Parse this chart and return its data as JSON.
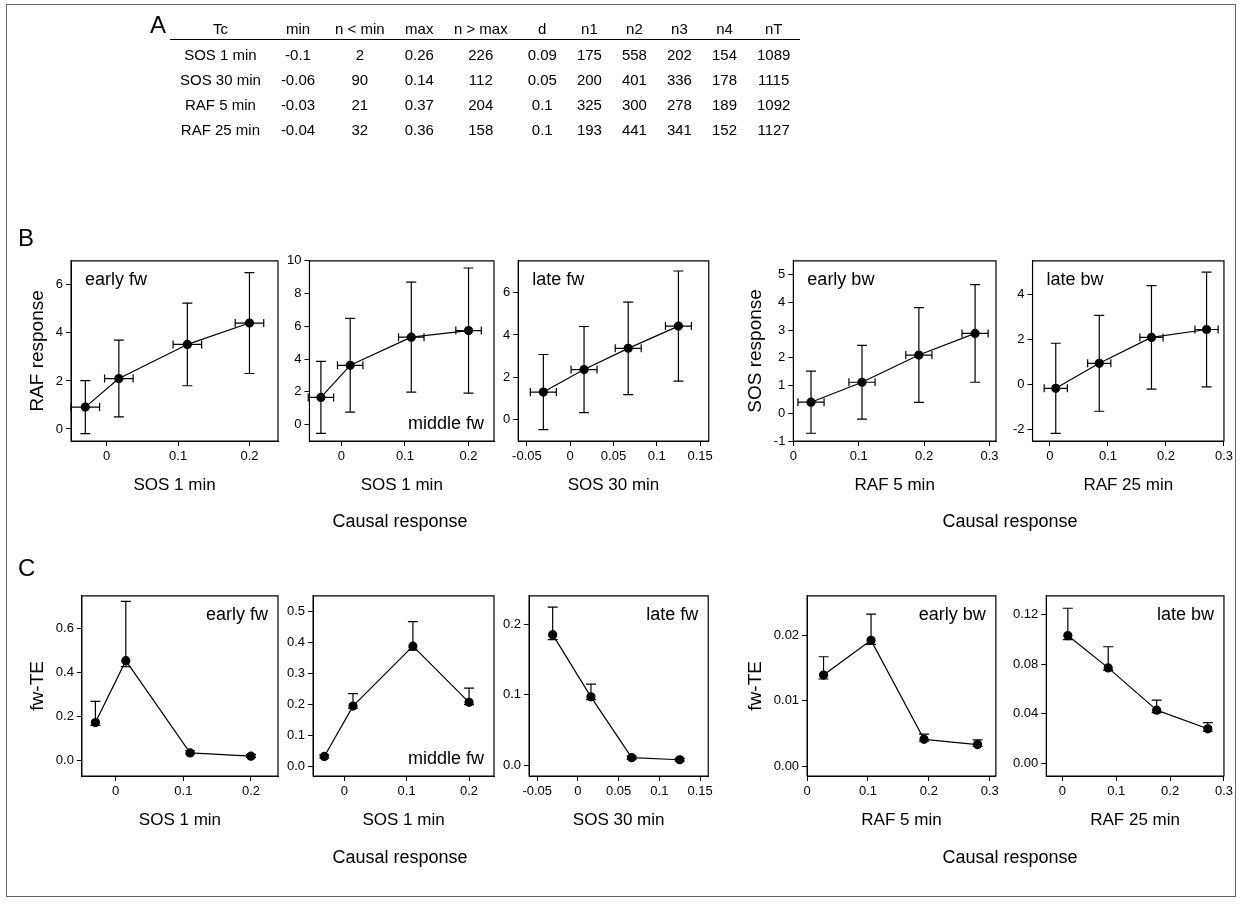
{
  "chart_data": [
    {
      "type": "other",
      "annotations": [
        "A"
      ],
      "ylabel": "Tc",
      "data_labels": true,
      "categories": [
        "min",
        "n < min",
        "max",
        "n > max",
        "d",
        "n1",
        "n2",
        "n3",
        "n4",
        "nT"
      ],
      "y_categories": [
        "SOS 1 min",
        "SOS 30 min",
        "RAF 5 min",
        "RAF 25 min"
      ],
      "cell_labels": [
        [
          "-0.1",
          "2",
          "0.26",
          "226",
          "0.09",
          "175",
          "558",
          "202",
          "154",
          "1089"
        ],
        [
          "-0.06",
          "90",
          "0.14",
          "112",
          "0.05",
          "200",
          "401",
          "336",
          "178",
          "1115"
        ],
        [
          "-0.03",
          "21",
          "0.37",
          "204",
          "0.1",
          "325",
          "300",
          "278",
          "189",
          "1092"
        ],
        [
          "-0.04",
          "32",
          "0.36",
          "158",
          "0.1",
          "193",
          "441",
          "341",
          "152",
          "1127"
        ]
      ]
    },
    {
      "type": "line",
      "title": "early fw",
      "annotations": [
        "B"
      ],
      "xlabel": "SOS 1 min",
      "ylabel": "RAF response",
      "color": "#000000",
      "marker": "circle",
      "x": [
        -0.03,
        0.017,
        0.113,
        0.2
      ],
      "values": [
        0.91,
        2.1,
        3.52,
        4.41
      ],
      "errors": [
        1.1,
        1.6,
        1.72,
        2.1
      ],
      "xerrors": [
        0.02,
        0.02,
        0.02,
        0.02
      ],
      "xlim": [
        -0.05,
        0.24
      ],
      "xticks": [
        0,
        0.1,
        0.2
      ],
      "ylim": [
        -0.5,
        7
      ],
      "yticks": [
        0,
        2,
        4,
        6
      ]
    },
    {
      "type": "line",
      "title": "middle fw",
      "annotations": [
        "Causal response"
      ],
      "xlabel": "SOS 1 min",
      "color": "#000000",
      "marker": "circle",
      "x": [
        -0.032,
        0.014,
        0.11,
        0.2
      ],
      "values": [
        1.66,
        3.62,
        5.34,
        5.74
      ],
      "errors": [
        2.2,
        2.86,
        3.36,
        3.82
      ],
      "xerrors": [
        0.02,
        0.02,
        0.02,
        0.02
      ],
      "xlim": [
        -0.05,
        0.24
      ],
      "xticks": [
        0,
        0.1,
        0.2
      ],
      "ylim": [
        -1,
        10
      ],
      "yticks": [
        0,
        2,
        4,
        6,
        8,
        10
      ]
    },
    {
      "type": "line",
      "title": "late fw",
      "xlabel": "SOS 30 min",
      "color": "#000000",
      "marker": "circle",
      "x": [
        -0.031,
        0.016,
        0.067,
        0.125
      ],
      "values": [
        1.31,
        2.37,
        3.37,
        4.42
      ],
      "errors": [
        1.77,
        2.03,
        2.18,
        2.6
      ],
      "xerrors": [
        0.015,
        0.015,
        0.015,
        0.015
      ],
      "xlim": [
        -0.06,
        0.16
      ],
      "xticks": [
        -0.05,
        0,
        0.05,
        0.1,
        0.15
      ],
      "ylim": [
        -1,
        7.5
      ],
      "yticks": [
        0,
        2,
        4,
        6
      ]
    },
    {
      "type": "line",
      "title": "early bw",
      "annotations": [
        "Causal response"
      ],
      "xlabel": "RAF 5 min",
      "ylabel": "SOS response",
      "color": "#000000",
      "marker": "circle",
      "x": [
        0.027,
        0.105,
        0.192,
        0.278
      ],
      "values": [
        0.4,
        1.12,
        2.1,
        2.88
      ],
      "errors": [
        1.12,
        1.33,
        1.71,
        1.76
      ],
      "xerrors": [
        0.02,
        0.02,
        0.02,
        0.02
      ],
      "xlim": [
        0,
        0.31
      ],
      "xticks": [
        0,
        0.1,
        0.2,
        0.3
      ],
      "ylim": [
        -1,
        5.5
      ],
      "yticks": [
        -1,
        0,
        1,
        2,
        3,
        4,
        5
      ]
    },
    {
      "type": "line",
      "title": "late bw",
      "xlabel": "RAF 25 min",
      "color": "#000000",
      "marker": "circle",
      "x": [
        0.01,
        0.085,
        0.175,
        0.27
      ],
      "values": [
        -0.16,
        0.95,
        2.1,
        2.45
      ],
      "errors": [
        2.0,
        2.13,
        2.3,
        2.55
      ],
      "xerrors": [
        0.02,
        0.02,
        0.02,
        0.02
      ],
      "xlim": [
        -0.03,
        0.3
      ],
      "xticks": [
        0,
        0.1,
        0.2,
        0.3
      ],
      "ylim": [
        -2.5,
        5.5
      ],
      "yticks": [
        -2,
        0,
        2,
        4
      ]
    },
    {
      "type": "line",
      "title": "early fw",
      "annotations": [
        "C"
      ],
      "xlabel": "SOS 1 min",
      "ylabel": "fw-TE",
      "color": "#000000",
      "marker": "circle",
      "x": [
        -0.03,
        0.015,
        0.11,
        0.2
      ],
      "values": [
        0.173,
        0.455,
        0.035,
        0.02
      ],
      "errors": [
        [
          0.16,
          0.27
        ],
        [
          0.428,
          0.725
        ],
        [
          0.03,
          0.045
        ],
        [
          0.015,
          0.028
        ]
      ],
      "xlim": [
        -0.05,
        0.24
      ],
      "xticks": [
        0,
        0.1,
        0.2
      ],
      "ylim": [
        -0.07,
        0.75
      ],
      "yticks": [
        {
          "value": 0,
          "label": "0.0"
        },
        0.2,
        0.4,
        0.6
      ]
    },
    {
      "type": "line",
      "title": "middle fw",
      "annotations": [
        "Causal response"
      ],
      "xlabel": "SOS 1 min",
      "color": "#000000",
      "marker": "circle",
      "x": [
        -0.032,
        0.014,
        0.11,
        0.2
      ],
      "values": [
        0.033,
        0.195,
        0.388,
        0.207
      ],
      "errors": [
        [
          0.028,
          0.038
        ],
        [
          0.188,
          0.235
        ],
        [
          0.375,
          0.467
        ],
        [
          0.2,
          0.253
        ]
      ],
      "xlim": [
        -0.05,
        0.24
      ],
      "xticks": [
        0,
        0.1,
        0.2
      ],
      "ylim": [
        -0.03,
        0.55
      ],
      "yticks": [
        {
          "value": 0,
          "label": "0.0"
        },
        0.1,
        0.2,
        0.3,
        0.4,
        0.5
      ]
    },
    {
      "type": "line",
      "title": "late fw",
      "xlabel": "SOS 30 min",
      "color": "#000000",
      "marker": "circle",
      "x": [
        -0.031,
        0.016,
        0.066,
        0.125
      ],
      "values": [
        0.185,
        0.097,
        0.011,
        0.008
      ],
      "errors": [
        [
          0.178,
          0.224
        ],
        [
          0.093,
          0.115
        ],
        [
          0.009,
          0.013
        ],
        [
          0.006,
          0.01
        ]
      ],
      "xlim": [
        -0.06,
        0.16
      ],
      "xticks": [
        -0.05,
        0,
        0.05,
        0.1,
        0.15
      ],
      "ylim": [
        -0.015,
        0.24
      ],
      "yticks": [
        {
          "value": 0,
          "label": "0.0"
        },
        0.1,
        0.2
      ]
    },
    {
      "type": "line",
      "title": "early bw",
      "annotations": [
        "Causal response"
      ],
      "xlabel": "RAF 5 min",
      "ylabel": "fw-TE",
      "color": "#000000",
      "marker": "circle",
      "x": [
        0.027,
        0.105,
        0.192,
        0.28
      ],
      "values": [
        0.0139,
        0.0192,
        0.0041,
        0.0033
      ],
      "errors": [
        [
          0.0133,
          0.0167
        ],
        [
          0.0186,
          0.0232
        ],
        [
          0.0038,
          0.0049
        ],
        [
          0.003,
          0.004
        ]
      ],
      "xlim": [
        0,
        0.31
      ],
      "xticks": [
        0,
        0.1,
        0.2,
        0.3
      ],
      "ylim": [
        -0.0015,
        0.026
      ],
      "yticks": [
        {
          "value": 0,
          "label": "0.00"
        },
        0.01,
        0.02
      ]
    },
    {
      "type": "line",
      "title": "late bw",
      "xlabel": "RAF 25 min",
      "color": "#000000",
      "marker": "circle",
      "x": [
        0.01,
        0.085,
        0.175,
        0.27
      ],
      "values": [
        0.103,
        0.077,
        0.043,
        0.028
      ],
      "errors": [
        [
          0.0997,
          0.125
        ],
        [
          0.075,
          0.094
        ],
        [
          0.041,
          0.051
        ],
        [
          0.026,
          0.033
        ]
      ],
      "xlim": [
        -0.03,
        0.3
      ],
      "xticks": [
        0,
        0.1,
        0.2,
        0.3
      ],
      "ylim": [
        -0.01,
        0.135
      ],
      "yticks": [
        {
          "value": 0,
          "label": "0.00"
        },
        {
          "value": 0.04,
          "label": "0.04"
        },
        {
          "value": 0.08,
          "label": "0.08"
        },
        0.12
      ]
    }
  ]
}
